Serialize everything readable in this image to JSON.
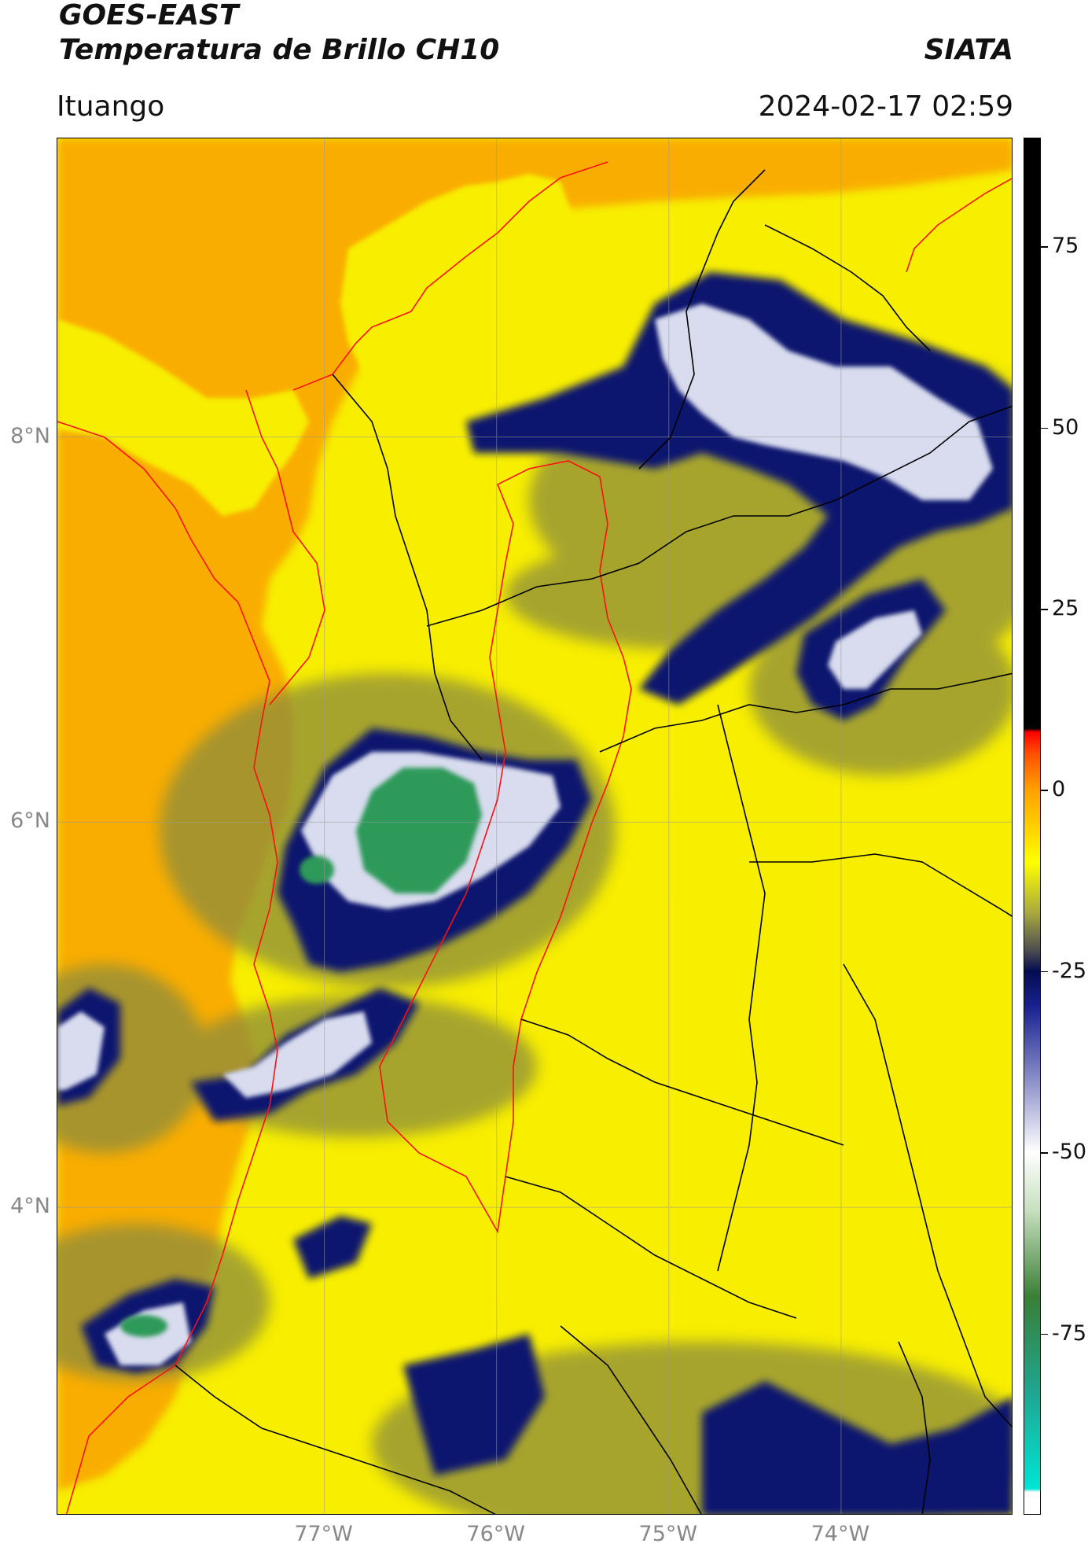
{
  "header": {
    "satellite": "GOES-EAST",
    "product": "Temperatura de Brillo CH10",
    "agency": "SIATA",
    "region": "Ituango",
    "datetime": "2024-02-17 02:59"
  },
  "map": {
    "lat_labels": [
      {
        "text": "8°N",
        "lat": 8
      },
      {
        "text": "6°N",
        "lat": 6
      },
      {
        "text": "4°N",
        "lat": 4
      }
    ],
    "lon_labels": [
      {
        "text": "77°W",
        "lon": -77
      },
      {
        "text": "76°W",
        "lon": -76
      },
      {
        "text": "75°W",
        "lon": -75
      },
      {
        "text": "74°W",
        "lon": -74
      }
    ],
    "extent": {
      "lon_min": -78.55,
      "lon_max": -73.0,
      "lat_min": 2.4,
      "lat_max": 9.55
    },
    "colors": {
      "sea": "#f9ad05",
      "land": "#f7ee00",
      "cloud_mid": "#8c8c3c",
      "cloud_dark": "#10186e",
      "cloud_light": "#d8dcee",
      "cloud_core": "#2e9a5a",
      "borders": "#000000",
      "coast": "#ff1010"
    }
  },
  "colorbar": {
    "ticks": [
      {
        "text": "75",
        "value": 75
      },
      {
        "text": "50",
        "value": 50
      },
      {
        "text": "25",
        "value": 25
      },
      {
        "text": "0",
        "value": 0
      },
      {
        "text": "-25",
        "value": -25
      },
      {
        "text": "-50",
        "value": -50
      },
      {
        "text": "-75",
        "value": -75
      }
    ],
    "range": [
      -100,
      90
    ],
    "stops": [
      {
        "value": -100,
        "color": "#ffffff"
      },
      {
        "value": -97,
        "color": "#ffffff"
      },
      {
        "value": -96.5,
        "color": "#00e5d5"
      },
      {
        "value": -83,
        "color": "#1fa590"
      },
      {
        "value": -70,
        "color": "#3a7f35"
      },
      {
        "value": -58,
        "color": "#c8e0c0"
      },
      {
        "value": -50,
        "color": "#ffffff"
      },
      {
        "value": -40,
        "color": "#8a8ec8"
      },
      {
        "value": -30,
        "color": "#1a2390"
      },
      {
        "value": -25,
        "color": "#040c50"
      },
      {
        "value": -22,
        "color": "#505050"
      },
      {
        "value": -17,
        "color": "#a8a840"
      },
      {
        "value": -10,
        "color": "#ffff00"
      },
      {
        "value": 0,
        "color": "#ffa000"
      },
      {
        "value": 5,
        "color": "#ff5000"
      },
      {
        "value": 8,
        "color": "#ff0000"
      },
      {
        "value": 8.5,
        "color": "#000000"
      },
      {
        "value": 90,
        "color": "#000000"
      }
    ]
  }
}
